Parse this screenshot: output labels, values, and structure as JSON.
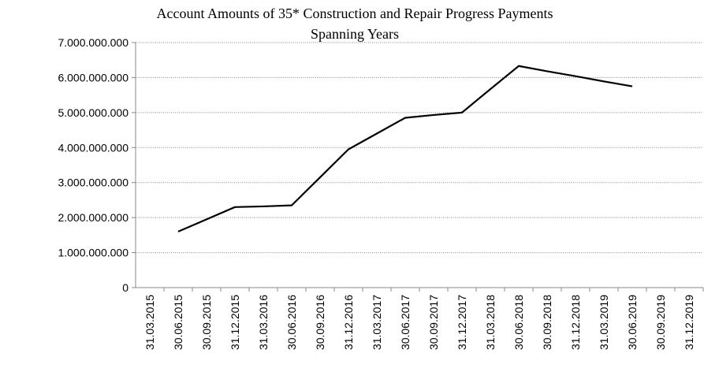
{
  "chart_data": {
    "type": "line",
    "title": "Account Amounts of 35* Construction and Repair Progress Payments Spanning Years",
    "categories": [
      "31.03.2015",
      "30.06.2015",
      "30.09.2015",
      "31.12.2015",
      "31.03.2016",
      "30.06.2016",
      "30.09.2016",
      "31.12.2016",
      "31.03.2017",
      "30.06.2017",
      "30.09.2017",
      "31.12.2017",
      "31.03.2018",
      "30.06.2018",
      "30.09.2018",
      "31.12.2018",
      "31.03.2019",
      "30.06.2019",
      "30.09.2019",
      "31.12.2019"
    ],
    "series": [
      {
        "color": "#000000",
        "values": [
          null,
          1600000000,
          1950000000,
          2300000000,
          2320000000,
          2350000000,
          3150000000,
          3950000000,
          4400000000,
          4850000000,
          4930000000,
          5000000000,
          5670000000,
          6330000000,
          6180000000,
          6040000000,
          5890000000,
          5750000000,
          null,
          null
        ]
      }
    ],
    "ylim": [
      0,
      7000000000
    ],
    "yticks": [
      0,
      {
        "value": 1000000000,
        "label": "1.000.000.000"
      },
      {
        "value": 2000000000,
        "label": "2.000.000.000"
      },
      {
        "value": 3000000000,
        "label": "3.000.000.000"
      },
      {
        "value": 4000000000,
        "label": "4.000.000.000"
      },
      {
        "value": 5000000000,
        "label": "5.000.000.000"
      },
      {
        "value": 6000000000,
        "label": "6.000.000.000"
      },
      {
        "value": 7000000000,
        "label": "7.000.000.000"
      }
    ],
    "grid": true
  }
}
